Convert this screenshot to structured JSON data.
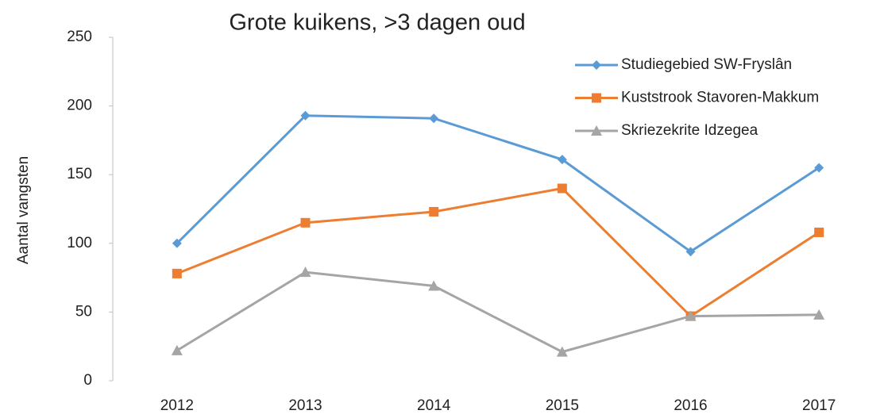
{
  "chart_data": {
    "type": "line",
    "title": "Grote kuikens, >3 dagen oud",
    "y_label": "Aantal vangsten",
    "categories": [
      "2012",
      "2013",
      "2014",
      "2015",
      "2016",
      "2017"
    ],
    "series": [
      {
        "name": "Studiegebied SW-Fryslân",
        "color": "#5b9bd5",
        "marker": "diamond",
        "values": [
          100,
          193,
          191,
          161,
          94,
          155
        ]
      },
      {
        "name": "Kuststrook Stavoren-Makkum",
        "color": "#ed7d31",
        "marker": "square",
        "values": [
          78,
          115,
          123,
          140,
          47,
          108
        ]
      },
      {
        "name": "Skriezekrite Idzegea",
        "color": "#a5a5a5",
        "marker": "triangle",
        "values": [
          22,
          79,
          69,
          21,
          47,
          48
        ]
      }
    ],
    "ylim": [
      0,
      250
    ],
    "yticks": [
      0,
      50,
      100,
      150,
      200,
      250
    ],
    "grid": false,
    "legend": "top-right"
  }
}
